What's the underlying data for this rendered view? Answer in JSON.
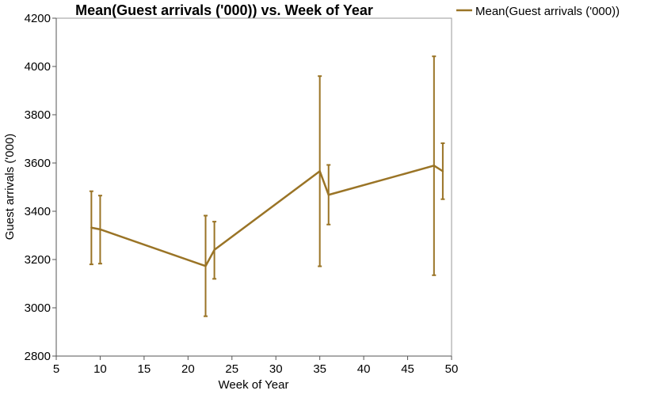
{
  "chart_data": {
    "type": "line",
    "title": "Mean(Guest arrivals ('000)) vs. Week of Year",
    "xlabel": "Week of Year",
    "ylabel": "Guest arrivals ('000)",
    "xlim": [
      5,
      50
    ],
    "ylim": [
      2800,
      4200
    ],
    "xticks": [
      5,
      10,
      15,
      20,
      25,
      30,
      35,
      40,
      45,
      50
    ],
    "yticks": [
      2800,
      3000,
      3200,
      3400,
      3600,
      3800,
      4000,
      4200
    ],
    "grid": false,
    "legend_position": "top-right-outside",
    "series_color": "#9a7426",
    "series": [
      {
        "name": "Mean(Guest arrivals ('000))",
        "points": [
          {
            "x": 9,
            "y": 3332,
            "low": 3180,
            "high": 3483
          },
          {
            "x": 10,
            "y": 3325,
            "low": 3183,
            "high": 3465
          },
          {
            "x": 22,
            "y": 3173,
            "low": 2965,
            "high": 3382
          },
          {
            "x": 23,
            "y": 3240,
            "low": 3120,
            "high": 3357
          },
          {
            "x": 35,
            "y": 3566,
            "low": 3172,
            "high": 3960
          },
          {
            "x": 36,
            "y": 3468,
            "low": 3345,
            "high": 3592
          },
          {
            "x": 48,
            "y": 3589,
            "low": 3135,
            "high": 4042
          },
          {
            "x": 49,
            "y": 3566,
            "low": 3450,
            "high": 3682
          }
        ]
      }
    ]
  }
}
